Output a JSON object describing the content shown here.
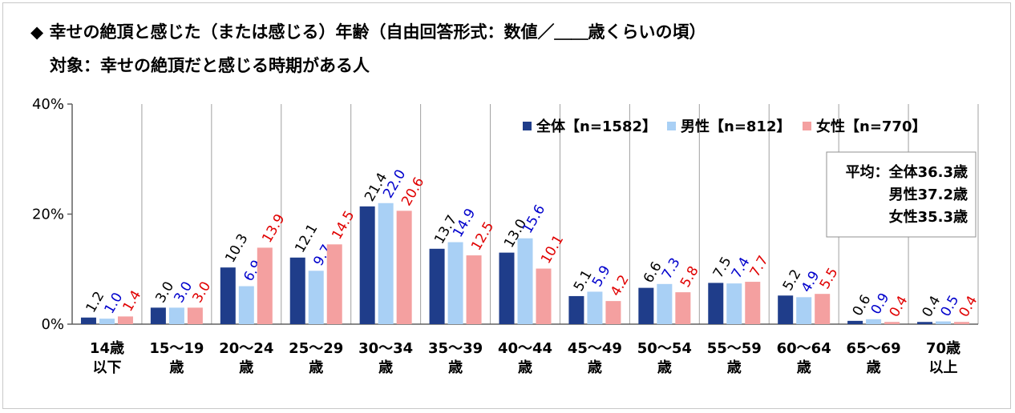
{
  "header": {
    "title": "◆ 幸せの絶頂と感じた（または感じる）年齢（自由回答形式：数値／＿＿歳くらいの頃）",
    "subtitle": "対象：幸せの絶頂だと感じる時期がある人"
  },
  "chart_data": {
    "type": "bar",
    "categories": [
      [
        "14歳",
        "以下"
      ],
      [
        "15～19",
        "歳"
      ],
      [
        "20～24",
        "歳"
      ],
      [
        "25～29",
        "歳"
      ],
      [
        "30～34",
        "歳"
      ],
      [
        "35～39",
        "歳"
      ],
      [
        "40～44",
        "歳"
      ],
      [
        "45～49",
        "歳"
      ],
      [
        "50～54",
        "歳"
      ],
      [
        "55～59",
        "歳"
      ],
      [
        "60～64",
        "歳"
      ],
      [
        "65～69",
        "歳"
      ],
      [
        "70歳",
        "以上"
      ]
    ],
    "series": [
      {
        "name": "全体【n=1582】",
        "color": "#1f3d8a",
        "label_color": "#000000",
        "values": [
          1.2,
          3.0,
          10.3,
          12.1,
          21.4,
          13.7,
          13.0,
          5.1,
          6.6,
          7.5,
          5.2,
          0.6,
          0.4
        ]
      },
      {
        "name": "男性【n=812】",
        "color": "#a9d0f5",
        "label_color": "#0000cc",
        "values": [
          1.0,
          3.0,
          6.9,
          9.7,
          22.0,
          14.9,
          15.6,
          5.9,
          7.3,
          7.4,
          4.9,
          0.9,
          0.5
        ]
      },
      {
        "name": "女性【n=770】",
        "color": "#f4a0a0",
        "label_color": "#e00000",
        "values": [
          1.4,
          3.0,
          13.9,
          14.5,
          20.6,
          12.5,
          10.1,
          4.2,
          5.8,
          7.7,
          5.5,
          0.4,
          0.4
        ]
      }
    ],
    "yticks": [
      "0%",
      "20%",
      "40%"
    ],
    "ylim": [
      0,
      40
    ],
    "grid": "vertical category separators",
    "legend_position": "top-right",
    "average_box": {
      "lines": [
        "平均：全体36.3歳",
        "男性37.2歳",
        "女性35.3歳"
      ]
    }
  }
}
